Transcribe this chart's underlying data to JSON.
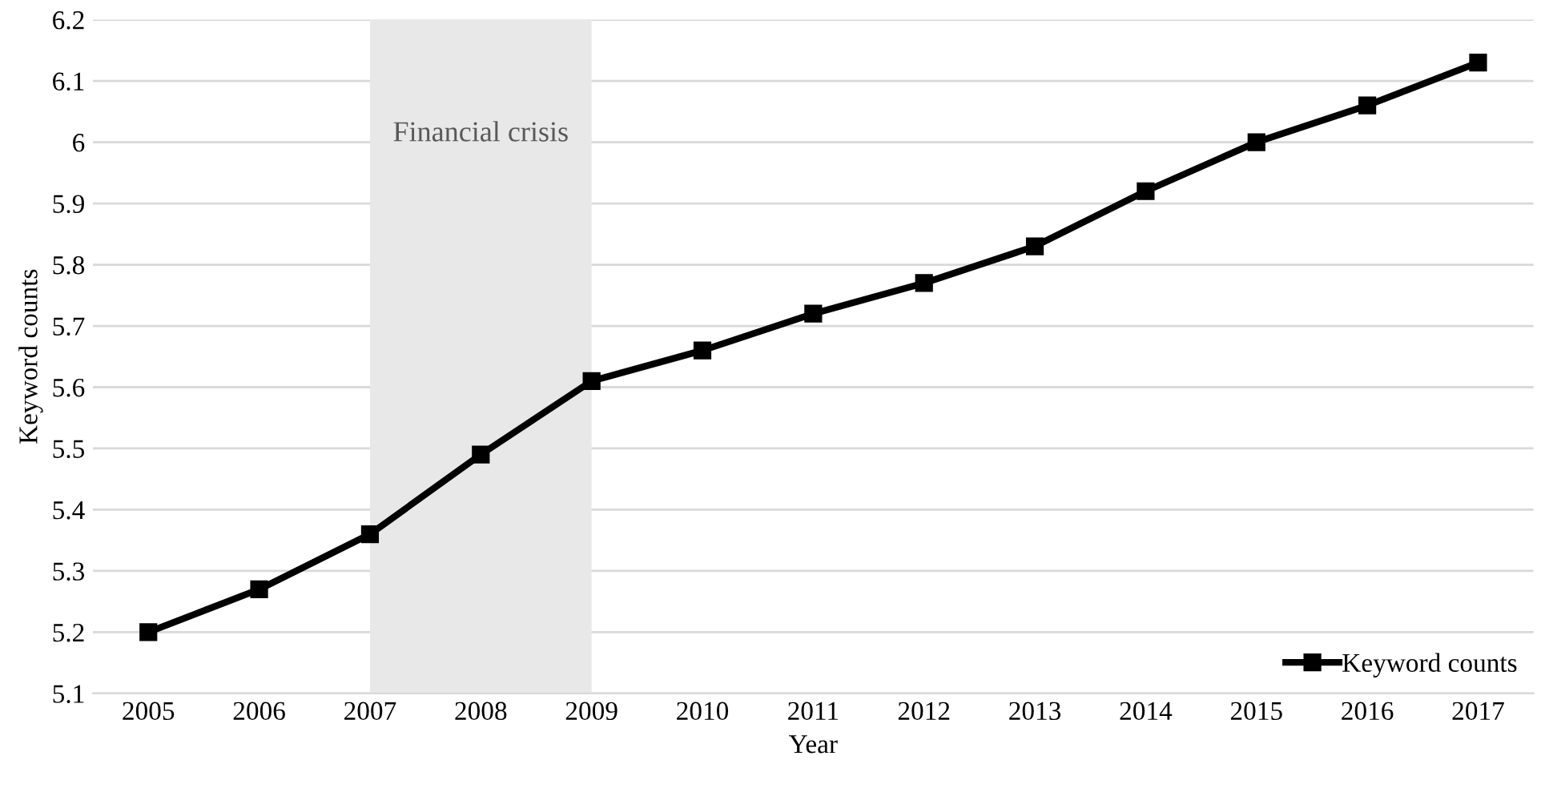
{
  "chart_data": {
    "type": "line",
    "xlabel": "Year",
    "ylabel": "Keyword counts",
    "categories": [
      "2005",
      "2006",
      "2007",
      "2008",
      "2009",
      "2010",
      "2011",
      "2012",
      "2013",
      "2014",
      "2015",
      "2016",
      "2017"
    ],
    "series": [
      {
        "name": "Keyword counts",
        "color": "#000000",
        "values": [
          5.2,
          5.27,
          5.36,
          5.49,
          5.61,
          5.66,
          5.72,
          5.77,
          5.83,
          5.92,
          6.0,
          6.06,
          6.13
        ]
      }
    ],
    "ylim": [
      5.1,
      6.2
    ],
    "yticks": [
      5.1,
      5.2,
      5.3,
      5.4,
      5.5,
      5.6,
      5.7,
      5.8,
      5.9,
      {
        "value": 6.0,
        "label": "6"
      },
      6.1,
      6.2
    ],
    "bands": [
      {
        "axis": "x",
        "from": "2007",
        "to": "2009",
        "label": "Financial crisis",
        "color": "#e8e8e8"
      }
    ],
    "grid": "y",
    "legend": "bottom right",
    "marker": "square",
    "line_style": "solid"
  }
}
